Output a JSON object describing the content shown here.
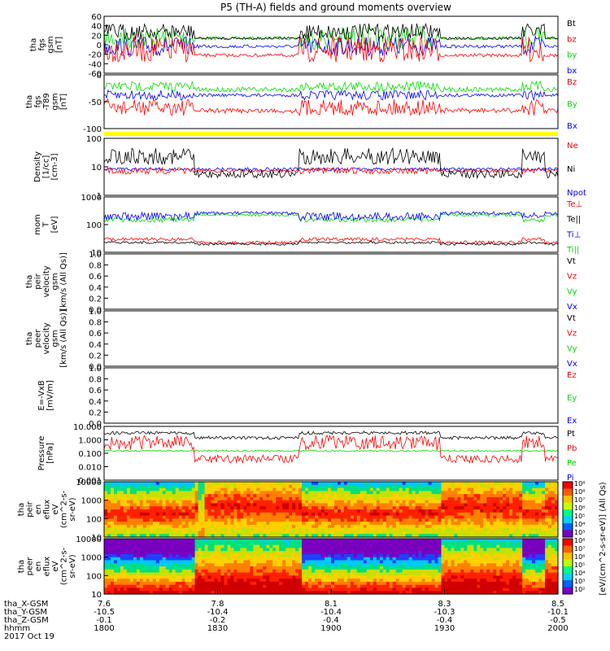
{
  "title": "P5 (TH-A) fields and ground moments overview",
  "colors": {
    "black": "#000000",
    "red": "#ff0000",
    "green": "#00dd00",
    "blue": "#0000ff",
    "yellow": "#ffff00"
  },
  "chart_data": [
    {
      "type": "line",
      "ylabel": [
        "tha",
        "fgs",
        "gsm",
        "[nT]"
      ],
      "yticks": [
        "60",
        "40",
        "20",
        "0",
        "-20",
        "-40",
        "-60"
      ],
      "ylim": [
        -60,
        60
      ],
      "series": [
        {
          "name": "Bt",
          "color": "#000000"
        },
        {
          "name": "bz",
          "color": "#ff0000"
        },
        {
          "name": "by",
          "color": "#00dd00"
        },
        {
          "name": "bx",
          "color": "#0000ff"
        }
      ]
    },
    {
      "type": "line",
      "ylabel": [
        "tha",
        "fgs",
        "-T89",
        "gsm",
        "[nT]"
      ],
      "yticks": [
        "0",
        "-50",
        "-100"
      ],
      "ylim": [
        -120,
        30
      ],
      "series": [
        {
          "name": "Bz",
          "color": "#ff0000"
        },
        {
          "name": "By",
          "color": "#00dd00"
        },
        {
          "name": "Bx",
          "color": "#0000ff"
        }
      ]
    },
    {
      "type": "line",
      "ylabel": [
        "Density",
        "[1/cc]",
        "[cm-3]"
      ],
      "yticks": [
        "100",
        "10",
        "1"
      ],
      "yscale": "log",
      "ylim": [
        1,
        100
      ],
      "series": [
        {
          "name": "Ne",
          "color": "#ff0000"
        },
        {
          "name": "Ni",
          "color": "#000000"
        },
        {
          "name": "Npot",
          "color": "#0000ff"
        }
      ]
    },
    {
      "type": "line",
      "ylabel": [
        "mom",
        "T",
        "[eV]"
      ],
      "yticks": [
        "1000",
        "100",
        "10"
      ],
      "yscale": "log",
      "ylim": [
        10,
        5000
      ],
      "series": [
        {
          "name": "Te⊥",
          "color": "#ff0000"
        },
        {
          "name": "Te||",
          "color": "#000000"
        },
        {
          "name": "Ti⊥",
          "color": "#0000ff"
        },
        {
          "name": "Ti||",
          "color": "#00dd00"
        }
      ]
    },
    {
      "type": "line",
      "ylabel": [
        "tha",
        "peir",
        "velocity",
        "gsm",
        "[km/s (All Qs)]"
      ],
      "yticks": [
        "1.0",
        "0.8",
        "0.6",
        "0.4",
        "0.2",
        "0.0"
      ],
      "ylim": [
        0,
        1
      ],
      "series": [
        {
          "name": "Vt",
          "color": "#000000"
        },
        {
          "name": "Vz",
          "color": "#ff0000"
        },
        {
          "name": "Vy",
          "color": "#00dd00"
        },
        {
          "name": "Vx",
          "color": "#0000ff"
        }
      ]
    },
    {
      "type": "line",
      "ylabel": [
        "tha",
        "peer",
        "velocity",
        "gsm",
        "[km/s (All Qs)]"
      ],
      "yticks": [
        "1.0",
        "0.8",
        "0.6",
        "0.4",
        "0.2",
        "0.0"
      ],
      "ylim": [
        0,
        1
      ],
      "series": [
        {
          "name": "Vt",
          "color": "#000000"
        },
        {
          "name": "Vz",
          "color": "#ff0000"
        },
        {
          "name": "Vy",
          "color": "#00dd00"
        },
        {
          "name": "Vx",
          "color": "#0000ff"
        }
      ]
    },
    {
      "type": "line",
      "ylabel": [
        "E=-VxB",
        "[mV/m]"
      ],
      "yticks": [
        "1.0",
        "0.8",
        "0.6",
        "0.4",
        "0.2",
        "0.0"
      ],
      "ylim": [
        0,
        1
      ],
      "series": [
        {
          "name": "Ez",
          "color": "#ff0000"
        },
        {
          "name": "Ey",
          "color": "#00dd00"
        },
        {
          "name": "Ex",
          "color": "#0000ff"
        }
      ]
    },
    {
      "type": "line",
      "ylabel": [
        "Pressure",
        "[nPa]"
      ],
      "yticks": [
        "10.000",
        "1.000",
        "0.100",
        "0.010",
        "0.001"
      ],
      "yscale": "log",
      "ylim": [
        0.001,
        10
      ],
      "series": [
        {
          "name": "Pt",
          "color": "#000000"
        },
        {
          "name": "Pb",
          "color": "#ff0000"
        },
        {
          "name": "Pe",
          "color": "#00dd00"
        },
        {
          "name": "Pi",
          "color": "#0000ff"
        }
      ]
    },
    {
      "type": "heatmap",
      "ylabel": [
        "tha",
        "peir",
        "en",
        "eflux",
        "eV",
        "(cm^2-s-",
        "sr-eV)"
      ],
      "yticks": [
        "10000",
        "1000",
        "100",
        "10"
      ],
      "yscale": "log"
    },
    {
      "type": "heatmap",
      "ylabel": [
        "tha",
        "peer",
        "en",
        "eflux",
        "eV",
        "(cm^2-s-",
        "sr-eV)"
      ],
      "yticks": [
        "10000",
        "1000",
        "100",
        "10"
      ],
      "yscale": "log"
    }
  ],
  "colorbar": {
    "label": "[eV/(cm^2-s-sr-eV)] (All Qs)",
    "ticks_top": [
      "10⁸",
      "10⁸",
      "10⁷",
      "10⁶",
      "10⁵",
      "10⁴",
      "10³"
    ],
    "ticks_bottom": [
      "10⁸",
      "10⁷",
      "10⁶",
      "10⁵",
      "10⁴",
      "10³",
      "10²"
    ]
  },
  "xaxis": {
    "row_labels": [
      "tha_X-GSM",
      "tha_Y-GSM",
      "tha_Z-GSM",
      "hhmm",
      "2017 Oct 19"
    ],
    "ticks": [
      {
        "values": [
          "7.6",
          "-10.5",
          "-0.1",
          "1800"
        ]
      },
      {
        "values": [
          "7.8",
          "-10.4",
          "-0.2",
          "1830"
        ]
      },
      {
        "values": [
          "8.1",
          "-10.4",
          "-0.4",
          "1900"
        ]
      },
      {
        "values": [
          "8.3",
          "-10.3",
          "-0.4",
          "1930"
        ]
      },
      {
        "values": [
          "8.5",
          "-10.1",
          "-0.5",
          "2000"
        ]
      }
    ]
  }
}
